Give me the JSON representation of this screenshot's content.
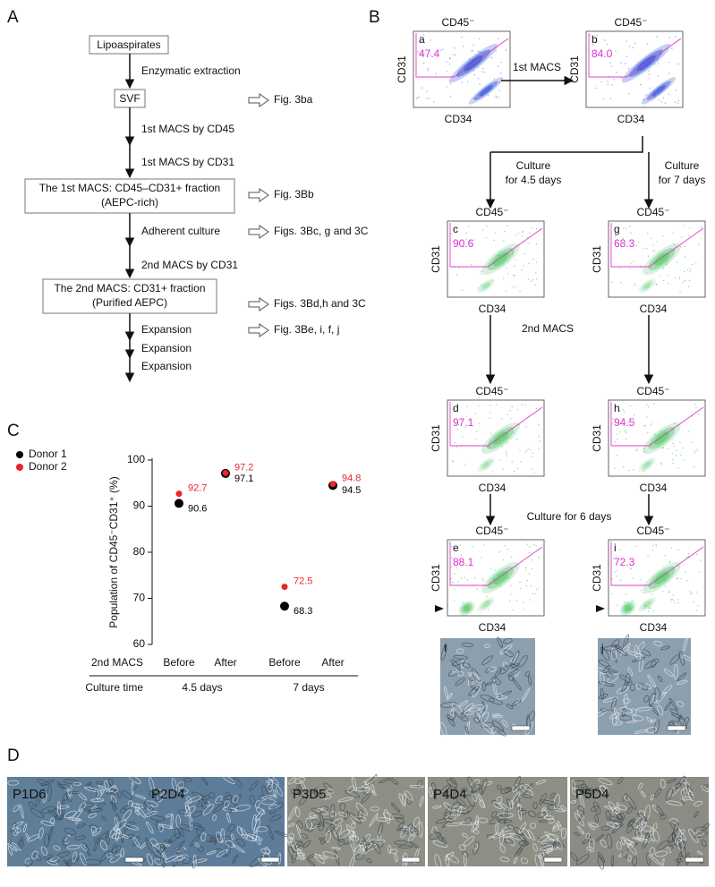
{
  "panel_a": {
    "label": "A",
    "boxes": [
      [
        "Lipoaspirates"
      ],
      [
        "SVF"
      ],
      [
        "The 1st MACS: CD45–CD31+ fraction",
        "(AEPC-rich)"
      ],
      [
        "The 2nd MACS: CD31+ fraction",
        "(Purified AEPC)"
      ]
    ],
    "steps": [
      "Enzymatic extraction",
      "1st MACS by CD45",
      "1st MACS by CD31",
      "Adherent culture",
      "2nd MACS by CD31",
      "Expansion",
      "Expansion",
      "Expansion"
    ],
    "refs": [
      "Fig. 3ba",
      "Fig. 3Bb",
      "Figs. 3Bc, g and 3C",
      "Figs. 3Bd,h and 3C",
      "Fig. 3Be, i, f, j"
    ]
  },
  "panel_b": {
    "label": "B",
    "plots": [
      {
        "id": "a",
        "title": "CD45⁻",
        "x_label": "CD34",
        "y_label": "CD31",
        "gate": "47.4"
      },
      {
        "id": "b",
        "title": "CD45⁻",
        "x_label": "CD34",
        "y_label": "CD31",
        "gate": "84.0"
      },
      {
        "id": "c",
        "title": "CD45⁻",
        "x_label": "CD34",
        "y_label": "CD31",
        "gate": "90.6"
      },
      {
        "id": "g",
        "title": "CD45⁻",
        "x_label": "CD34",
        "y_label": "CD31",
        "gate": "68.3"
      },
      {
        "id": "d",
        "title": "CD45⁻",
        "x_label": "CD34",
        "y_label": "CD31",
        "gate": "97.1"
      },
      {
        "id": "h",
        "title": "CD45⁻",
        "x_label": "CD34",
        "y_label": "CD31",
        "gate": "94.5"
      },
      {
        "id": "e",
        "title": "CD45⁻",
        "x_label": "CD34",
        "y_label": "CD31",
        "gate": "88.1"
      },
      {
        "id": "i",
        "title": "CD45⁻",
        "x_label": "CD34",
        "y_label": "CD31",
        "gate": "72.3"
      }
    ],
    "arrows": [
      "1st MACS",
      "Culture",
      "for 4.5 days",
      "Culture",
      "for 7 days",
      "2nd MACS",
      "Culture for 6 days"
    ],
    "images": [
      "f",
      "j"
    ]
  },
  "chart_data": {
    "type": "scatter",
    "label": "C",
    "y_label": "Population of CD45⁻CD31⁺ (%)",
    "categories": [
      "Before",
      "After",
      "Before",
      "After"
    ],
    "row_labels": [
      "2nd MACS",
      "Culture time"
    ],
    "groups": [
      "4.5 days",
      "7 days"
    ],
    "series": [
      {
        "name": "Donor 1",
        "color": "#000000",
        "values": [
          90.6,
          97.1,
          68.3,
          94.5
        ]
      },
      {
        "name": "Donor 2",
        "color": "#e8262a",
        "values": [
          92.7,
          97.2,
          72.5,
          94.8
        ]
      }
    ],
    "ylim": [
      60,
      100
    ],
    "yticks": [
      60,
      70,
      80,
      90,
      100
    ]
  },
  "panel_d": {
    "label": "D",
    "images": [
      "P1D6",
      "P2D4",
      "P3D5",
      "P4D4",
      "P5D4"
    ]
  }
}
